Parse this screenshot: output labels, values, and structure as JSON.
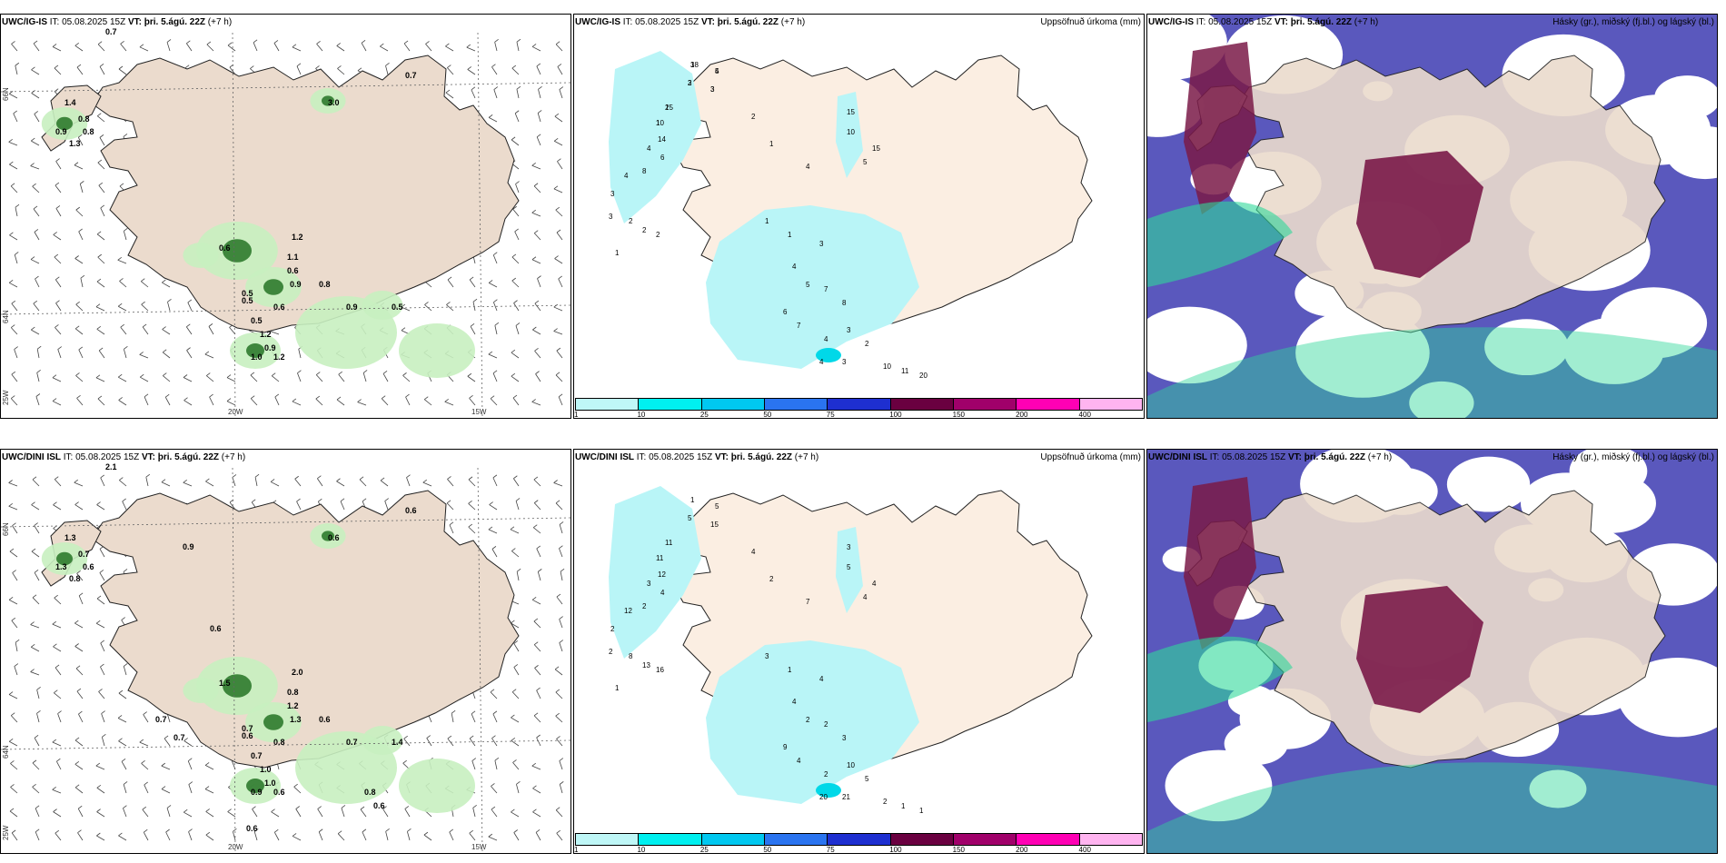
{
  "rows": [
    {
      "model": "UWC/IG-IS",
      "it_label": "IT:",
      "it": "05.08.2025 15Z",
      "vt_label": "VT:",
      "vt": "þri. 5.ágú. 22Z",
      "lead": "(+7 h)",
      "wind_values": [
        "0.7",
        "1.4",
        "0.8",
        "0.9",
        "1.3",
        "0.8",
        "3.0",
        "0.6",
        "1.2",
        "1.1",
        "0.6",
        "0.5",
        "0.5",
        "0.9",
        "0.8",
        "0.6",
        "0.9",
        "0.5",
        "0.5",
        "1.2",
        "0.9",
        "1.2",
        "1.0",
        "0.7"
      ],
      "precip_values": [
        "3",
        "5",
        "3",
        "3",
        "15",
        "10",
        "14",
        "4",
        "6",
        "8",
        "3",
        "4",
        "3",
        "2",
        "2",
        "2",
        "1",
        "2",
        "1",
        "15",
        "10",
        "5",
        "4",
        "15",
        "1",
        "1",
        "3",
        "4",
        "5",
        "7",
        "8",
        "6",
        "7",
        "4",
        "3",
        "2",
        "4",
        "3",
        "10",
        "11",
        "20",
        "18",
        "4",
        "2",
        "3",
        "2",
        "1"
      ]
    },
    {
      "model": "UWC/DINI ISL",
      "it_label": "IT:",
      "it": "05.08.2025 15Z",
      "vt_label": "VT:",
      "vt": "þri. 5.ágú. 22Z",
      "lead": "(+7 h)",
      "wind_values": [
        "2.1",
        "1.3",
        "0.7",
        "1.3",
        "0.8",
        "0.6",
        "0.6",
        "1.5",
        "2.0",
        "0.8",
        "1.2",
        "0.7",
        "0.6",
        "1.3",
        "0.6",
        "0.8",
        "0.7",
        "1.4",
        "0.7",
        "1.0",
        "1.0",
        "0.6",
        "0.9",
        "0.6",
        "0.9",
        "0.6",
        "0.6",
        "0.7",
        "0.7",
        "0.8",
        "0.6"
      ],
      "precip_values": [
        "1",
        "5",
        "5",
        "15",
        "11",
        "11",
        "12",
        "3",
        "4",
        "2",
        "2",
        "12",
        "2",
        "8",
        "13",
        "16",
        "1",
        "4",
        "2",
        "3",
        "5",
        "4",
        "7",
        "4",
        "3",
        "1",
        "4",
        "4",
        "2",
        "2",
        "3",
        "9",
        "4",
        "2",
        "10",
        "5",
        "20",
        "21",
        "2",
        "1",
        "1"
      ]
    }
  ],
  "precip_title": "Uppsöfnuð úrkoma (mm)",
  "cloud_title": "Hásky (gr.), miðský (fj.bl.) og lágský (bl.)",
  "axis": {
    "lat_66": "66N",
    "lat_64": "64N",
    "lon_25": "25W",
    "lon_20": "20W",
    "lon_15": "15W"
  },
  "colorbar": {
    "labels": [
      "1",
      "10",
      "25",
      "50",
      "75",
      "100",
      "150",
      "200",
      "400"
    ],
    "colors": [
      "#bff7f7",
      "#00f0f0",
      "#00c8f0",
      "#2a74f0",
      "#1e2fd0",
      "#6a0040",
      "#a0006a",
      "#ff00b4",
      "#ffb4f0"
    ]
  },
  "colors": {
    "land": "#ebdbcd",
    "land_precip": "#fbeee2",
    "precip_light": "#b9f5f7",
    "green_light": "#c8f0c0",
    "green_dark": "#1a6b1a",
    "cloud_low": "#5a58bd",
    "cloud_high": "#7a1a48",
    "cloud_mid": "#2fd89a"
  }
}
